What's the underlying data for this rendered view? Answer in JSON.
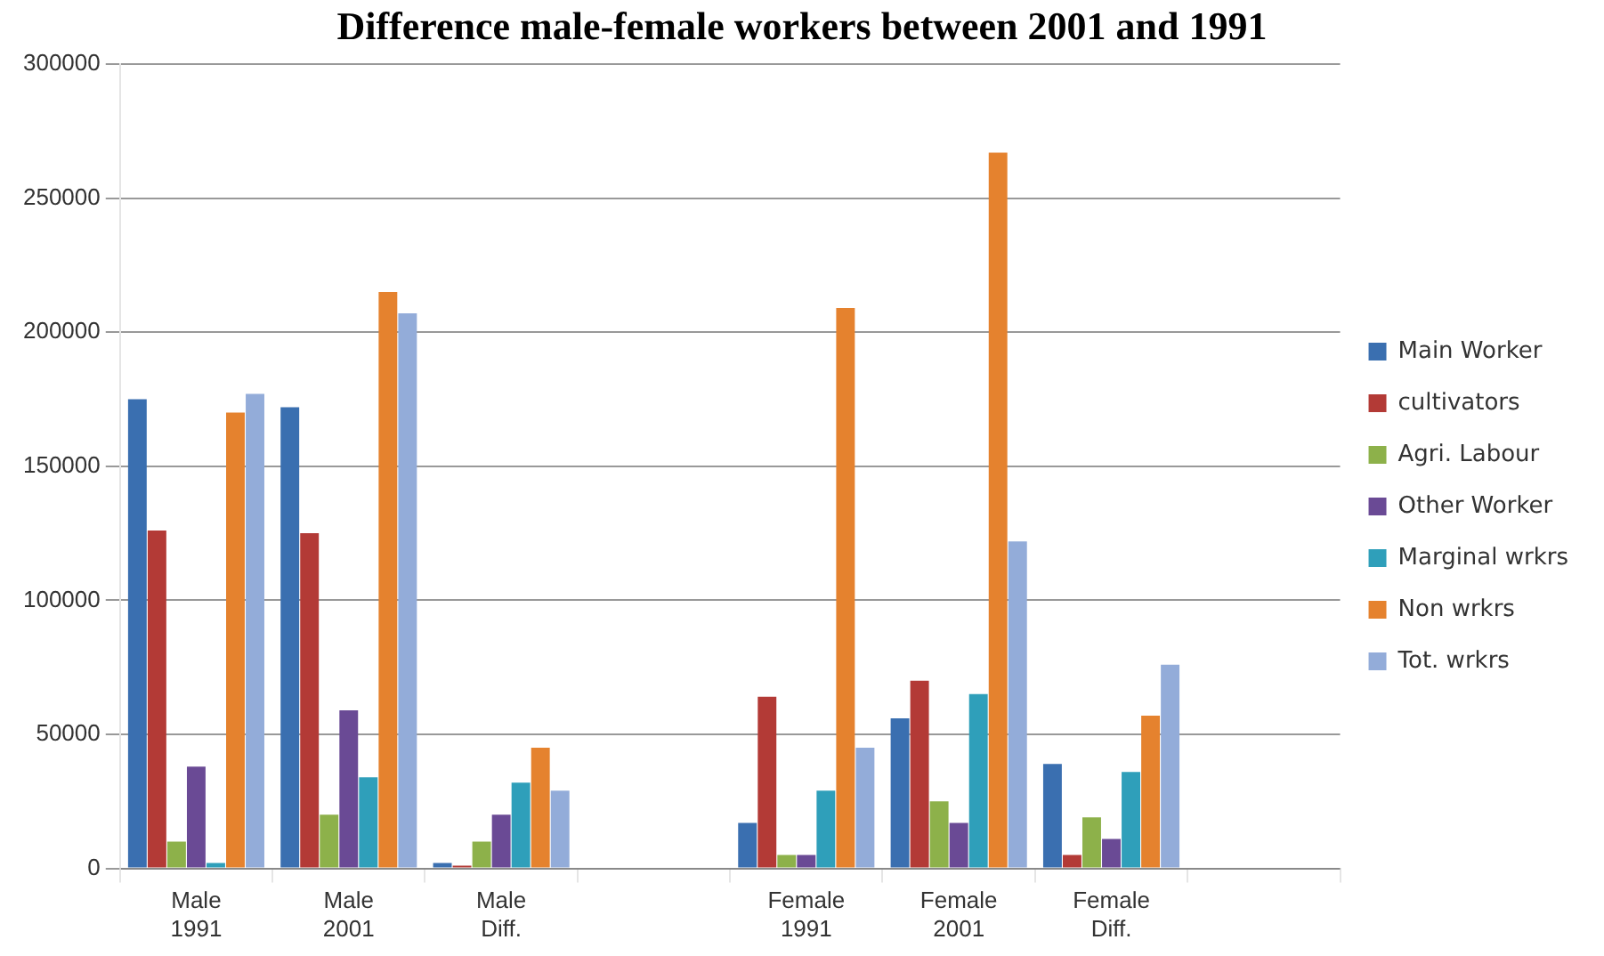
{
  "chart_data": {
    "type": "bar",
    "title": "Difference male-female workers between 2001 and 1991",
    "categories": [
      "Male\n1991",
      "Male\n2001",
      "Male\nDiff.",
      null,
      "Female\n1991",
      "Female\n2001",
      "Female\nDiff.",
      null
    ],
    "series": [
      {
        "name": "Main Worker",
        "color": "#3a6fb0",
        "values": [
          175000,
          172000,
          2000,
          null,
          17000,
          56000,
          39000,
          null
        ]
      },
      {
        "name": "cultivators",
        "color": "#b33a36",
        "values": [
          126000,
          125000,
          1000,
          null,
          64000,
          70000,
          5000,
          null
        ]
      },
      {
        "name": "Agri. Labour",
        "color": "#8db14a",
        "values": [
          10000,
          20000,
          10000,
          null,
          5000,
          25000,
          19000,
          null
        ]
      },
      {
        "name": "Other Worker",
        "color": "#6a4a95",
        "values": [
          38000,
          59000,
          20000,
          null,
          5000,
          17000,
          11000,
          null
        ]
      },
      {
        "name": "Marginal wrkrs",
        "color": "#2f9fba",
        "values": [
          2000,
          34000,
          32000,
          null,
          29000,
          65000,
          36000,
          null
        ]
      },
      {
        "name": "Non wrkrs",
        "color": "#e5822e",
        "values": [
          170000,
          215000,
          45000,
          null,
          209000,
          267000,
          57000,
          null
        ]
      },
      {
        "name": "Tot. wrkrs",
        "color": "#93acd9",
        "values": [
          177000,
          207000,
          29000,
          null,
          45000,
          122000,
          76000,
          null
        ]
      }
    ],
    "ylim": [
      0,
      300000
    ],
    "yticks": [
      0,
      50000,
      100000,
      150000,
      200000,
      250000,
      300000
    ],
    "grid": "y",
    "legend": "right"
  }
}
